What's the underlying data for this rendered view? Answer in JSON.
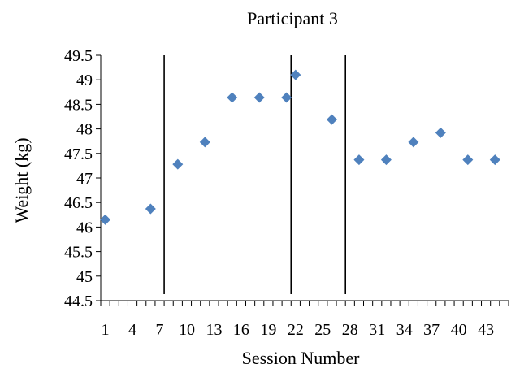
{
  "chart_data": {
    "type": "scatter",
    "title": "Participant 3",
    "xlabel": "Session Number",
    "ylabel": "Weight (kg)",
    "xlim": [
      1,
      45
    ],
    "ylim": [
      44.5,
      49.5
    ],
    "x_ticks": [
      1,
      4,
      7,
      10,
      13,
      16,
      19,
      22,
      25,
      28,
      31,
      34,
      37,
      40,
      43
    ],
    "y_ticks": [
      44.5,
      45,
      45.5,
      46,
      46.5,
      47,
      47.5,
      48,
      48.5,
      49,
      49.5
    ],
    "y_tick_labels": [
      "44.5",
      "45",
      "45.5",
      "46",
      "46.5",
      "47",
      "47.5",
      "48",
      "48.5",
      "49",
      "49.5"
    ],
    "phase_lines": [
      7.5,
      21.5,
      27.5
    ],
    "grid": false,
    "marker_color": "#4F81BD",
    "series": [
      {
        "x": [
          1,
          6,
          9,
          12,
          15,
          18,
          21,
          22,
          26,
          29,
          32,
          35,
          38,
          41,
          44
        ],
        "y": [
          46.15,
          46.37,
          47.28,
          47.73,
          48.64,
          48.64,
          48.64,
          49.1,
          48.19,
          47.37,
          47.37,
          47.73,
          47.92,
          47.37,
          47.37
        ]
      }
    ]
  }
}
